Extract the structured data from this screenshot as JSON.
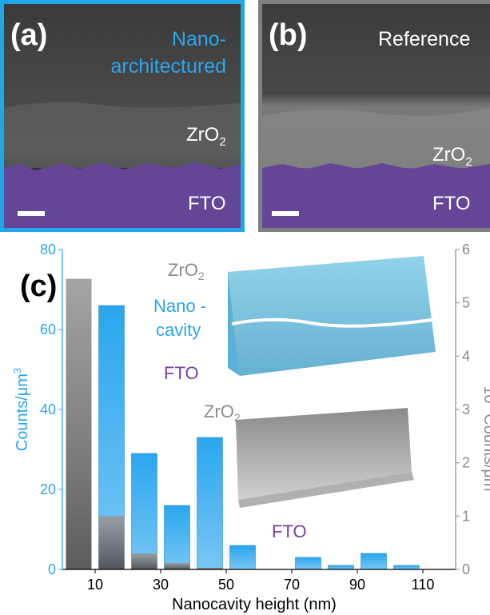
{
  "panel_a": {
    "label": "(a)",
    "title_line1": "Nano-",
    "title_line2": "architectured",
    "layer_top": "ZrO",
    "layer_top_sub": "2",
    "layer_bottom": "FTO"
  },
  "panel_b": {
    "label": "(b)",
    "title": "Reference",
    "layer_top": "ZrO",
    "layer_top_sub": "2",
    "layer_bottom": "FTO"
  },
  "panel_c": {
    "label": "(c)",
    "inset_top": {
      "zro2": "ZrO",
      "zro2_sub": "2",
      "cavity_line1": "Nano -",
      "cavity_line2": "cavity",
      "fto": "FTO"
    },
    "inset_bottom": {
      "zro2": "ZrO",
      "zro2_sub": "2",
      "fto": "FTO"
    }
  },
  "colors": {
    "accent_blue": "#1ea8e6",
    "reference_gray": "#808080",
    "fto_purple": "#7a3fa6",
    "sem_purple": "#5a3a86"
  },
  "chart_data": {
    "type": "bar",
    "xlabel": "Nanocavity height (nm)",
    "ylabel_left": "Counts/μm",
    "ylabel_left_sup": "3",
    "ylabel_right_prefix": "10",
    "ylabel_right_prefix_sup": "3",
    "ylabel_right": "Counts/μm",
    "ylabel_right_sup": "3",
    "x_ticks": [
      "10",
      "30",
      "50",
      "70",
      "90",
      "110"
    ],
    "x_tick_values": [
      10,
      30,
      50,
      70,
      90,
      110
    ],
    "xlim": [
      0,
      120
    ],
    "ylim_left": [
      0,
      80
    ],
    "ylim_right": [
      0,
      6
    ],
    "y_ticks_left": [
      "0",
      "20",
      "40",
      "60",
      "80"
    ],
    "y_ticks_right": [
      "0",
      "1",
      "2",
      "3",
      "4",
      "5",
      "6"
    ],
    "x": [
      5,
      15,
      25,
      35,
      45,
      55,
      65,
      75,
      85,
      95,
      105
    ],
    "series": [
      {
        "axis": "left",
        "color": "#2aa6ee",
        "values": [
          null,
          66,
          29,
          16,
          33,
          6,
          0,
          3,
          1,
          4,
          1
        ]
      },
      {
        "axis": "right",
        "color": "#7a7a7a",
        "values": [
          5.45,
          1.0,
          0.3,
          0.12,
          0.03,
          0,
          0,
          0,
          0,
          0,
          0
        ]
      }
    ]
  }
}
